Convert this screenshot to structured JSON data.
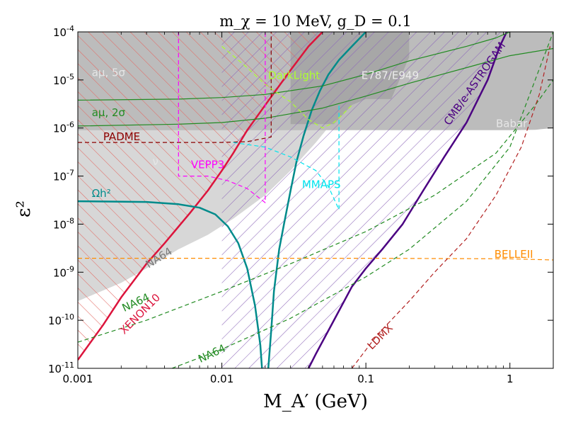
{
  "chart_data": {
    "type": "line",
    "title": "m_χ = 10 MeV, g_D = 0.1",
    "xlabel": "M_A′ (GeV)",
    "ylabel": "ε²",
    "xscale": "log",
    "yscale": "log",
    "xlim": [
      0.001,
      2
    ],
    "ylim": [
      1e-11,
      0.0001
    ],
    "x_ticks": [
      {
        "value": 0.001,
        "label": "0.001"
      },
      {
        "value": 0.01,
        "label": "0.01"
      },
      {
        "value": 0.1,
        "label": "0.1"
      },
      {
        "value": 1,
        "label": "1"
      }
    ],
    "y_ticks": [
      {
        "value": 1e-11,
        "base": "10",
        "exp": "-11"
      },
      {
        "value": 1e-10,
        "base": "10",
        "exp": "-10"
      },
      {
        "value": 1e-09,
        "base": "10",
        "exp": "-9"
      },
      {
        "value": 1e-08,
        "base": "10",
        "exp": "-8"
      },
      {
        "value": 1e-07,
        "base": "10",
        "exp": "-7"
      },
      {
        "value": 1e-06,
        "base": "10",
        "exp": "-6"
      },
      {
        "value": 1e-05,
        "base": "10",
        "exp": "-5"
      },
      {
        "value": 0.0001,
        "base": "10",
        "exp": "-4"
      }
    ],
    "regions": [
      {
        "name": "Babar",
        "color": "#b0b0b0",
        "opacity": 0.85,
        "points": [
          [
            0.001,
            0.0001
          ],
          [
            2,
            0.0001
          ],
          [
            2,
            1e-06
          ],
          [
            1.5,
            9.2e-07
          ],
          [
            1.0,
            9e-07
          ],
          [
            0.35,
            9e-07
          ],
          [
            0.12,
            9e-07
          ],
          [
            0.05,
            9e-07
          ],
          [
            0.02,
            9e-07
          ],
          [
            0.01,
            9e-07
          ],
          [
            0.005,
            9e-07
          ],
          [
            0.001,
            9e-07
          ]
        ]
      },
      {
        "name": "NA64-excluded",
        "color": "#bdbdbd",
        "opacity": 0.6,
        "points": [
          [
            0.001,
            0.0001
          ],
          [
            0.001,
            2.5e-10
          ],
          [
            0.002,
            6e-10
          ],
          [
            0.003,
            1.2e-09
          ],
          [
            0.005,
            3e-09
          ],
          [
            0.008,
            6e-09
          ],
          [
            0.012,
            1.3e-08
          ],
          [
            0.02,
            4e-08
          ],
          [
            0.03,
            1.3e-07
          ],
          [
            0.045,
            5e-07
          ],
          [
            0.07,
            2.5e-06
          ],
          [
            0.1,
            1e-05
          ],
          [
            0.13,
            4e-05
          ],
          [
            0.15,
            0.0001
          ]
        ]
      },
      {
        "name": "E787/E949",
        "color": "#9a9a9a",
        "opacity": 0.6,
        "points": [
          [
            0.03,
            0.0001
          ],
          [
            0.03,
            1.2e-06
          ],
          [
            0.06,
            1.2e-06
          ],
          [
            0.08,
            3e-06
          ],
          [
            0.1,
            4e-06
          ],
          [
            0.15,
            4e-06
          ],
          [
            0.2,
            3e-05
          ],
          [
            0.2,
            0.0001
          ]
        ]
      },
      {
        "name": "XENON10",
        "color": "#e8746e",
        "hatch": "back",
        "opacity": 1,
        "points": [
          [
            0.001,
            1.5e-11
          ],
          [
            0.0015,
            8e-11
          ],
          [
            0.002,
            3e-10
          ],
          [
            0.003,
            1.5e-09
          ],
          [
            0.004,
            4e-09
          ],
          [
            0.006,
            1.7e-08
          ],
          [
            0.008,
            5e-08
          ],
          [
            0.01,
            1.3e-07
          ],
          [
            0.012,
            3e-07
          ],
          [
            0.015,
            9e-07
          ],
          [
            0.02,
            3e-06
          ],
          [
            0.03,
            1.6e-05
          ],
          [
            0.04,
            5e-05
          ],
          [
            0.05,
            0.0001
          ],
          [
            0.001,
            0.0001
          ]
        ]
      },
      {
        "name": "CMB/e-ASTROGAM",
        "color": "#9c7ac0",
        "hatch": "fwd",
        "opacity": 1,
        "points": [
          [
            0.01,
            1e-11
          ],
          [
            0.04,
            1e-11
          ],
          [
            0.045,
            2e-11
          ],
          [
            0.06,
            1e-10
          ],
          [
            0.08,
            5e-10
          ],
          [
            0.1,
            1.2e-09
          ],
          [
            0.13,
            3e-09
          ],
          [
            0.18,
            1e-08
          ],
          [
            0.25,
            5e-08
          ],
          [
            0.35,
            2.5e-07
          ],
          [
            0.5,
            1.3e-06
          ],
          [
            0.7,
            1e-05
          ],
          [
            0.85,
            5e-05
          ],
          [
            0.95,
            0.0001
          ],
          [
            0.01,
            0.0001
          ]
        ]
      }
    ],
    "series": [
      {
        "name": "XENON10",
        "color": "#dc143c",
        "width": 2.5,
        "dash": "",
        "points": [
          [
            0.001,
            1.5e-11
          ],
          [
            0.0015,
            8e-11
          ],
          [
            0.002,
            3e-10
          ],
          [
            0.003,
            1.5e-09
          ],
          [
            0.004,
            4e-09
          ],
          [
            0.006,
            1.7e-08
          ],
          [
            0.008,
            5e-08
          ],
          [
            0.01,
            1.3e-07
          ],
          [
            0.012,
            3e-07
          ],
          [
            0.015,
            9e-07
          ],
          [
            0.02,
            3e-06
          ],
          [
            0.03,
            1.6e-05
          ],
          [
            0.04,
            5e-05
          ],
          [
            0.05,
            0.0001
          ]
        ]
      },
      {
        "name": "CMB/e-ASTROGAM",
        "color": "#4b0082",
        "width": 2.5,
        "dash": "",
        "points": [
          [
            0.04,
            1e-11
          ],
          [
            0.045,
            2e-11
          ],
          [
            0.06,
            1e-10
          ],
          [
            0.08,
            5e-10
          ],
          [
            0.1,
            1.2e-09
          ],
          [
            0.13,
            3e-09
          ],
          [
            0.18,
            1e-08
          ],
          [
            0.25,
            5e-08
          ],
          [
            0.35,
            2.5e-07
          ],
          [
            0.5,
            1.3e-06
          ],
          [
            0.7,
            1e-05
          ],
          [
            0.85,
            5e-05
          ],
          [
            0.95,
            0.0001
          ]
        ]
      },
      {
        "name": "Ωh²",
        "color": "#008b8b",
        "width": 2.5,
        "dash": "",
        "points": [
          [
            0.001,
            3e-08
          ],
          [
            0.003,
            2.9e-08
          ],
          [
            0.005,
            2.6e-08
          ],
          [
            0.007,
            2.2e-08
          ],
          [
            0.009,
            1.6e-08
          ],
          [
            0.011,
            9e-09
          ],
          [
            0.013,
            4e-09
          ],
          [
            0.015,
            1.2e-09
          ],
          [
            0.017,
            2e-10
          ],
          [
            0.0185,
            3e-11
          ],
          [
            0.019,
            1e-11
          ]
        ]
      },
      {
        "name": "Ωh² upper",
        "color": "#008b8b",
        "width": 2.5,
        "dash": "",
        "points": [
          [
            0.021,
            1e-11
          ],
          [
            0.022,
            6e-11
          ],
          [
            0.023,
            4e-10
          ],
          [
            0.025,
            3e-09
          ],
          [
            0.027,
            1e-08
          ],
          [
            0.03,
            5e-08
          ],
          [
            0.033,
            2e-07
          ],
          [
            0.037,
            7e-07
          ],
          [
            0.042,
            2.3e-06
          ],
          [
            0.048,
            6e-06
          ],
          [
            0.055,
            1.3e-05
          ],
          [
            0.065,
            2.6e-05
          ],
          [
            0.08,
            5e-05
          ],
          [
            0.1,
            0.0001
          ]
        ]
      },
      {
        "name": "a_μ,5σ",
        "color": "#228b22",
        "width": 1.2,
        "dash": "",
        "points": [
          [
            0.001,
            3.8e-06
          ],
          [
            0.005,
            4e-06
          ],
          [
            0.01,
            4.3e-06
          ],
          [
            0.02,
            5e-06
          ],
          [
            0.05,
            7.5e-06
          ],
          [
            0.1,
            1.3e-05
          ],
          [
            0.2,
            2.5e-05
          ],
          [
            0.5,
            5e-05
          ],
          [
            0.8,
            7.5e-05
          ],
          [
            1.0,
            0.0001
          ]
        ]
      },
      {
        "name": "a_μ,2σ",
        "color": "#228b22",
        "width": 1.2,
        "dash": "",
        "points": [
          [
            0.001,
            1.1e-06
          ],
          [
            0.005,
            1.2e-06
          ],
          [
            0.01,
            1.3e-06
          ],
          [
            0.02,
            1.6e-06
          ],
          [
            0.05,
            2.6e-06
          ],
          [
            0.1,
            4.6e-06
          ],
          [
            0.2,
            8.5e-06
          ],
          [
            0.5,
            1.8e-05
          ],
          [
            1.0,
            3.2e-05
          ],
          [
            2.0,
            4.5e-05
          ]
        ]
      },
      {
        "name": "NA64 (1)",
        "color": "#228b22",
        "width": 1.2,
        "dash": "6,4",
        "points": [
          [
            0.001,
            3.5e-11
          ],
          [
            0.003,
            1e-10
          ],
          [
            0.01,
            4e-10
          ],
          [
            0.03,
            1.5e-09
          ],
          [
            0.1,
            7e-09
          ],
          [
            0.3,
            4e-08
          ],
          [
            0.8,
            3e-07
          ],
          [
            1.5,
            3e-06
          ],
          [
            2,
            1e-05
          ]
        ]
      },
      {
        "name": "NA64 (2)",
        "color": "#228b22",
        "width": 1.2,
        "dash": "6,4",
        "points": [
          [
            0.0045,
            1e-11
          ],
          [
            0.01,
            2.5e-11
          ],
          [
            0.03,
            1.1e-10
          ],
          [
            0.1,
            8e-10
          ],
          [
            0.2,
            3e-09
          ],
          [
            0.5,
            3e-08
          ],
          [
            1.0,
            4e-07
          ],
          [
            2.0,
            0.0001
          ]
        ]
      },
      {
        "name": "BELLEII",
        "color": "#ff8c00",
        "width": 1.2,
        "dash": "6,4",
        "points": [
          [
            0.001,
            1.95e-09
          ],
          [
            0.01,
            1.95e-09
          ],
          [
            0.1,
            1.95e-09
          ],
          [
            1,
            1.9e-09
          ],
          [
            2,
            1.8e-09
          ]
        ]
      },
      {
        "name": "LDMX",
        "color": "#b22222",
        "width": 1.2,
        "dash": "6,4",
        "points": [
          [
            0.08,
            1e-11
          ],
          [
            0.12,
            5e-11
          ],
          [
            0.2,
            2.5e-10
          ],
          [
            0.3,
            1e-09
          ],
          [
            0.5,
            5e-09
          ],
          [
            0.8,
            4e-08
          ],
          [
            1.2,
            4e-07
          ],
          [
            1.6,
            5e-06
          ],
          [
            1.9,
            5e-05
          ]
        ]
      },
      {
        "name": "PADME",
        "color": "#8b0000",
        "width": 1.2,
        "dash": "6,4",
        "points": [
          [
            0.001,
            5e-07
          ],
          [
            0.005,
            5e-07
          ],
          [
            0.01,
            5e-07
          ],
          [
            0.015,
            5.2e-07
          ],
          [
            0.022,
            6.5e-07
          ],
          [
            0.022,
            0.0001
          ]
        ]
      },
      {
        "name": "VEPP3",
        "color": "#ff00ff",
        "width": 1.2,
        "dash": "6,4",
        "points": [
          [
            0.005,
            0.0001
          ],
          [
            0.005,
            1e-07
          ],
          [
            0.008,
            1e-07
          ],
          [
            0.011,
            8e-08
          ],
          [
            0.015,
            5.5e-08
          ],
          [
            0.02,
            2.8e-08
          ],
          [
            0.02,
            0.0001
          ]
        ]
      },
      {
        "name": "MMAPS",
        "color": "#00e5ee",
        "width": 1.2,
        "dash": "6,4",
        "points": [
          [
            0.012,
            5e-07
          ],
          [
            0.02,
            4e-07
          ],
          [
            0.03,
            2.5e-07
          ],
          [
            0.045,
            1.3e-07
          ],
          [
            0.055,
            6e-08
          ],
          [
            0.065,
            2e-08
          ],
          [
            0.065,
            3e-06
          ]
        ]
      },
      {
        "name": "DarkLight",
        "color": "#adff2f",
        "width": 1.2,
        "dash": "6,4",
        "points": [
          [
            0.01,
            5e-05
          ],
          [
            0.015,
            1.8e-05
          ],
          [
            0.02,
            8e-06
          ],
          [
            0.03,
            3.5e-06
          ],
          [
            0.04,
            1.5e-06
          ],
          [
            0.05,
            1e-06
          ],
          [
            0.06,
            1.3e-06
          ],
          [
            0.07,
            2e-06
          ],
          [
            0.08,
            3e-06
          ]
        ]
      }
    ],
    "annotations": [
      {
        "text": "DarkLight",
        "x": 0.021,
        "y": 1.05e-05,
        "color": "#adff2f",
        "rotate": 0
      },
      {
        "text": "E787/E949",
        "x": 0.093,
        "y": 1.05e-05,
        "color": "#ebebeb",
        "rotate": 0
      },
      {
        "text": "Babar",
        "x": 0.8,
        "y": 1.05e-06,
        "color": "#e6e6e6",
        "rotate": 0
      },
      {
        "text": "PADME",
        "x": 0.0015,
        "y": 5.6e-07,
        "color": "#8b0000",
        "rotate": 0
      },
      {
        "text": "VEPP3",
        "x": 0.0061,
        "y": 1.45e-07,
        "color": "#ff00ff",
        "rotate": 0
      },
      {
        "text": "MMAPS",
        "x": 0.036,
        "y": 5.6e-08,
        "color": "#00e5ee",
        "rotate": 0
      },
      {
        "text": "BELLEII",
        "x": 0.78,
        "y": 2e-09,
        "color": "#ff8c00",
        "rotate": 0
      },
      {
        "text": "NA64",
        "x": 0.0031,
        "y": 1.2e-09,
        "color": "#7a7a7a",
        "rotate": -32
      },
      {
        "text": "XENON10",
        "x": 0.0021,
        "y": 5e-11,
        "color": "#dc143c",
        "rotate": -45
      },
      {
        "text": "NA64",
        "x": 0.0021,
        "y": 1.5e-10,
        "color": "#228b22",
        "rotate": -25
      },
      {
        "text": "NA64",
        "x": 0.0071,
        "y": 1.3e-11,
        "color": "#228b22",
        "rotate": -25
      },
      {
        "text": "LDMX",
        "x": 0.11,
        "y": 2.4e-11,
        "color": "#b22222",
        "rotate": -45
      },
      {
        "text": "CMB/e-ASTROGAM",
        "x": 0.38,
        "y": 1.1e-06,
        "color": "#4b0082",
        "rotate": -55
      },
      {
        "text": "Ωh²",
        "x": 0.00125,
        "y": 3.7e-08,
        "color": "#008b8b",
        "rotate": 0,
        "size": 17
      },
      {
        "text": "aμ, 5σ",
        "x": 0.00125,
        "y": 1.2e-05,
        "color": "#e6e6e6",
        "rotate": 0
      },
      {
        "text": "aμ, 2σ",
        "x": 0.00125,
        "y": 1.75e-06,
        "color": "#228b22",
        "rotate": 0
      },
      {
        "text": "ν",
        "x": 0.0033,
        "y": 1.7e-07,
        "color": "#e6e6e6",
        "rotate": 0
      }
    ]
  }
}
